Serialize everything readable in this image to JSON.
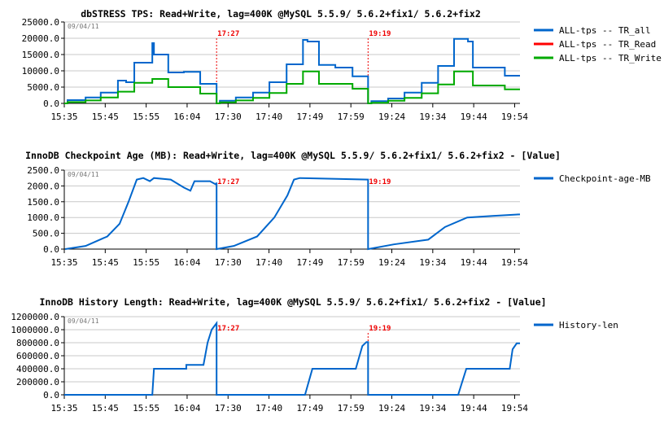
{
  "markers": [
    {
      "x": 3.72,
      "label": "17:27"
    },
    {
      "x": 7.42,
      "label": "19:19"
    }
  ],
  "x_tick_labels": [
    "15:35",
    "15:45",
    "15:55",
    "16:04",
    "17:30",
    "17:40",
    "17:49",
    "17:59",
    "19:24",
    "19:34",
    "19:44",
    "19:54"
  ],
  "chart_data": [
    {
      "type": "line",
      "title": "dbSTRESS TPS: Read+Write, lag=400K @MySQL 5.5.9/ 5.6.2+fix1/ 5.6.2+fix2",
      "date": "09/04/11",
      "step": true,
      "xlim": [
        0,
        11.13
      ],
      "ylim": [
        0,
        25000
      ],
      "yticks": [
        "0.0",
        "5000.0",
        "10000.0",
        "15000.0",
        "20000.0",
        "25000.0"
      ],
      "grid": true,
      "legend_position": "right",
      "series": [
        {
          "name": "ALL-tps -- TR_all",
          "color": "#0066cc",
          "x": [
            0,
            0.08,
            0.52,
            0.89,
            1.31,
            1.51,
            1.71,
            2.15,
            2.19,
            2.54,
            2.92,
            3.32,
            3.72,
            3.8,
            4.19,
            4.61,
            5.01,
            5.43,
            5.83,
            5.94,
            6.22,
            6.62,
            7.04,
            7.42,
            7.5,
            7.91,
            8.31,
            8.73,
            9.13,
            9.52,
            9.86,
            9.98,
            10.36,
            10.76,
            11.13
          ],
          "y": [
            0,
            1000,
            1800,
            3300,
            7000,
            6500,
            12500,
            18500,
            15000,
            9500,
            9700,
            6000,
            0,
            800,
            1800,
            3300,
            6500,
            12000,
            19500,
            19000,
            11800,
            11000,
            8300,
            0,
            700,
            1500,
            3300,
            6300,
            11500,
            19800,
            19000,
            11000,
            11000,
            8500,
            8500
          ]
        },
        {
          "name": "ALL-tps -- TR_Read",
          "color": "#ff0000",
          "x": [],
          "y": []
        },
        {
          "name": "ALL-tps -- TR_Write",
          "color": "#00aa00",
          "x": [
            0,
            0.08,
            0.52,
            0.89,
            1.31,
            1.71,
            2.15,
            2.54,
            3.32,
            3.72,
            3.8,
            4.19,
            4.61,
            5.01,
            5.43,
            5.83,
            6.22,
            7.04,
            7.42,
            7.5,
            7.91,
            8.31,
            8.73,
            9.13,
            9.52,
            9.98,
            10.76,
            11.13
          ],
          "y": [
            0,
            400,
            900,
            1800,
            3600,
            6300,
            7500,
            5000,
            3000,
            0,
            300,
            900,
            1700,
            3200,
            6000,
            9800,
            6000,
            4500,
            0,
            200,
            800,
            1700,
            3100,
            5800,
            9800,
            5500,
            4300,
            4300
          ]
        }
      ]
    },
    {
      "type": "line",
      "title": "InnoDB Checkpoint Age (MB): Read+Write, lag=400K @MySQL 5.5.9/ 5.6.2+fix1/ 5.6.2+fix2 - [Value]",
      "date": "09/04/11",
      "step": false,
      "xlim": [
        0,
        11.13
      ],
      "ylim": [
        0,
        2500
      ],
      "yticks": [
        "0.0",
        "500.0",
        "1000.0",
        "1500.0",
        "2000.0",
        "2500.0"
      ],
      "grid": true,
      "legend_position": "right",
      "series": [
        {
          "name": "Checkpoint-age-MB",
          "color": "#0066cc",
          "x": [
            0.02,
            0.52,
            1.05,
            1.35,
            1.57,
            1.77,
            1.93,
            2.09,
            2.19,
            2.6,
            2.92,
            3.08,
            3.18,
            3.56,
            3.7,
            3.72,
            3.72,
            4.14,
            4.71,
            5.13,
            5.45,
            5.61,
            5.75,
            7.42,
            7.42,
            8.05,
            8.89,
            9.3,
            9.84,
            10.46,
            11.13
          ],
          "y": [
            0,
            100,
            400,
            800,
            1500,
            2200,
            2250,
            2150,
            2250,
            2200,
            1950,
            1850,
            2150,
            2150,
            2050,
            2100,
            0,
            100,
            400,
            1000,
            1700,
            2200,
            2250,
            2200,
            0,
            150,
            300,
            700,
            1000,
            1050,
            1100
          ]
        }
      ]
    },
    {
      "type": "line",
      "title": "InnoDB History Length: Read+Write, lag=400K @MySQL 5.5.9/ 5.6.2+fix1/ 5.6.2+fix2 - [Value]",
      "date": "09/04/11",
      "step": false,
      "xlim": [
        0,
        11.13
      ],
      "ylim": [
        0,
        1200000
      ],
      "yticks": [
        "0.0",
        "200000.0",
        "400000.0",
        "600000.0",
        "800000.0",
        "1000000.0",
        "1200000.0"
      ],
      "grid": true,
      "legend_position": "right",
      "series": [
        {
          "name": "History-len",
          "color": "#0066cc",
          "x": [
            0,
            2.15,
            2.19,
            2.98,
            2.98,
            3.4,
            3.5,
            3.6,
            3.72,
            3.72,
            5.88,
            6.06,
            7.12,
            7.28,
            7.38,
            7.42,
            7.42,
            9.62,
            9.82,
            10.88,
            10.95,
            11.05,
            11.13
          ],
          "y": [
            0,
            0,
            400000,
            400000,
            460000,
            460000,
            800000,
            1000000,
            1100000,
            0,
            0,
            400000,
            400000,
            750000,
            810000,
            810000,
            0,
            0,
            400000,
            400000,
            700000,
            790000,
            790000
          ]
        }
      ]
    }
  ]
}
